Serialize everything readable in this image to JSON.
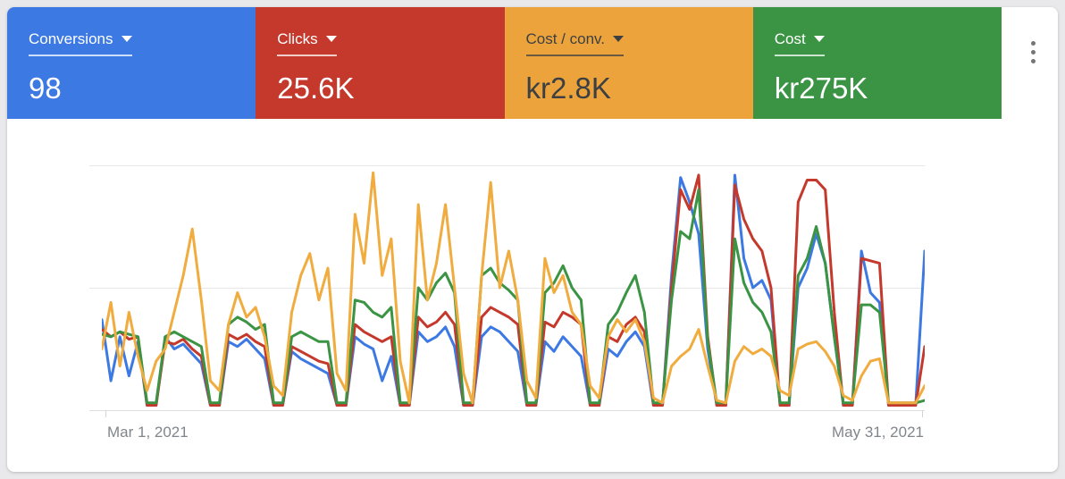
{
  "page": {
    "background": "#E9E9EB",
    "panel_background": "#FFFFFF"
  },
  "metrics": [
    {
      "id": "conversions",
      "label": "Conversions",
      "value": "98",
      "bg": "#3D79E3",
      "fg": "#FFFFFF",
      "underline": "rgba(255,255,255,0.75)"
    },
    {
      "id": "clicks",
      "label": "Clicks",
      "value": "25.6K",
      "bg": "#C5392C",
      "fg": "#FFFFFF",
      "underline": "rgba(255,255,255,0.75)"
    },
    {
      "id": "cost-per-conv",
      "label": "Cost / conv.",
      "value": "kr2.8K",
      "bg": "#ECA33B",
      "fg": "#3C4043",
      "underline": "rgba(60,64,67,0.75)"
    },
    {
      "id": "cost",
      "label": "Cost",
      "value": "kr275K",
      "bg": "#3B9443",
      "fg": "#FFFFFF",
      "underline": "rgba(255,255,255,0.75)"
    }
  ],
  "menu": {
    "more_options_icon": "kebab-menu"
  },
  "axis": {
    "x_left_label": "Mar 1, 2021",
    "x_right_label": "May 31, 2021"
  },
  "chart_data": {
    "type": "line",
    "title": "",
    "xlabel": "",
    "ylabel": "",
    "x_unit": "day",
    "x_range": [
      "2021-03-01",
      "2021-05-31"
    ],
    "x_labels": [
      "Mar 1, 2021",
      "May 31, 2021"
    ],
    "y_scale": "percent_of_plot_height (0 = baseline, 100 = top gridline; y-axis values hidden in UI)",
    "ylim": [
      0,
      100
    ],
    "grid": true,
    "gridlines_y": [
      0,
      50,
      100
    ],
    "legend_position": "none (colors match metric cards above)",
    "note": "Weekly pattern: weekday activity with near-zero weekends; values estimated from pixels",
    "draw_order": [
      0,
      1,
      3,
      2
    ],
    "series": [
      {
        "id": "conversions",
        "name": "Conversions",
        "color": "#3D79E3",
        "values": [
          37,
          12,
          30,
          14,
          28,
          2,
          2,
          30,
          25,
          27,
          23,
          19,
          2,
          2,
          28,
          26,
          29,
          25,
          21,
          2,
          2,
          24,
          21,
          19,
          17,
          15,
          2,
          2,
          30,
          27,
          25,
          12,
          22,
          2,
          2,
          32,
          28,
          30,
          34,
          26,
          2,
          2,
          30,
          34,
          32,
          28,
          24,
          2,
          2,
          28,
          24,
          30,
          26,
          22,
          2,
          2,
          25,
          22,
          28,
          32,
          26,
          2,
          2,
          55,
          95,
          85,
          72,
          25,
          2,
          2,
          96,
          62,
          50,
          53,
          45,
          2,
          2,
          50,
          58,
          72,
          60,
          30,
          2,
          2,
          65,
          48,
          44,
          2,
          2,
          2,
          2,
          65
        ]
      },
      {
        "id": "clicks",
        "name": "Clicks",
        "color": "#C5392C",
        "values": [
          33,
          30,
          32,
          29,
          30,
          2,
          2,
          28,
          27,
          29,
          25,
          22,
          2,
          2,
          31,
          29,
          31,
          28,
          26,
          2,
          2,
          26,
          24,
          22,
          20,
          19,
          2,
          2,
          35,
          32,
          30,
          28,
          30,
          2,
          2,
          38,
          34,
          36,
          40,
          35,
          2,
          2,
          38,
          42,
          40,
          38,
          35,
          2,
          2,
          36,
          34,
          40,
          38,
          35,
          2,
          2,
          30,
          28,
          35,
          38,
          32,
          2,
          2,
          50,
          90,
          82,
          96,
          30,
          2,
          2,
          92,
          78,
          70,
          65,
          50,
          2,
          2,
          85,
          94,
          94,
          90,
          40,
          2,
          2,
          62,
          61,
          60,
          2,
          2,
          2,
          2,
          26
        ]
      },
      {
        "id": "cost-per-conv",
        "name": "Cost / conv.",
        "color": "#F0AC3E",
        "values": [
          25,
          44,
          18,
          40,
          22,
          8,
          20,
          25,
          40,
          55,
          74,
          45,
          12,
          8,
          35,
          48,
          38,
          42,
          30,
          10,
          6,
          40,
          55,
          64,
          45,
          58,
          15,
          8,
          80,
          60,
          97,
          55,
          70,
          20,
          3,
          84,
          45,
          60,
          84,
          50,
          15,
          3,
          55,
          93,
          50,
          65,
          45,
          12,
          5,
          62,
          48,
          55,
          40,
          35,
          10,
          5,
          30,
          37,
          32,
          37,
          28,
          5,
          3,
          18,
          22,
          25,
          33,
          18,
          4,
          3,
          20,
          26,
          23,
          25,
          22,
          8,
          6,
          25,
          27,
          28,
          24,
          18,
          6,
          4,
          14,
          20,
          21,
          3,
          3,
          3,
          3,
          10
        ]
      },
      {
        "id": "cost",
        "name": "Cost",
        "color": "#3B9443",
        "values": [
          31,
          30,
          32,
          31,
          30,
          3,
          3,
          30,
          32,
          30,
          28,
          26,
          3,
          3,
          35,
          38,
          36,
          33,
          35,
          3,
          3,
          30,
          32,
          30,
          28,
          28,
          3,
          3,
          45,
          44,
          40,
          38,
          42,
          3,
          3,
          50,
          45,
          52,
          56,
          48,
          3,
          3,
          55,
          58,
          52,
          49,
          45,
          3,
          3,
          48,
          52,
          59,
          50,
          45,
          3,
          3,
          35,
          40,
          48,
          55,
          40,
          3,
          3,
          45,
          73,
          70,
          90,
          28,
          3,
          3,
          70,
          52,
          44,
          40,
          32,
          3,
          3,
          55,
          62,
          75,
          60,
          30,
          3,
          3,
          43,
          43,
          40,
          3,
          3,
          3,
          3,
          4
        ]
      }
    ]
  }
}
